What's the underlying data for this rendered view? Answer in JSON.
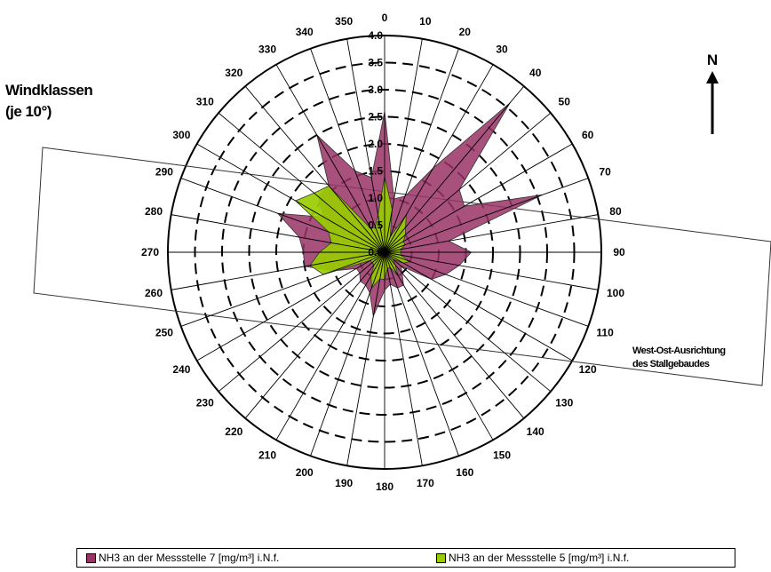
{
  "chart_data": {
    "type": "radar",
    "title_lines": [
      "Windklassen",
      "(je 10°)"
    ],
    "north_label": "N",
    "annotation_lines": [
      "West-Ost-Ausrichtung",
      "des Stallgebaudes"
    ],
    "angle_labels": [
      "0",
      "10",
      "20",
      "30",
      "40",
      "50",
      "60",
      "70",
      "80",
      "90",
      "100",
      "110",
      "120",
      "130",
      "140",
      "150",
      "160",
      "170",
      "180",
      "190",
      "200",
      "210",
      "220",
      "230",
      "240",
      "250",
      "260",
      "270",
      "280",
      "290",
      "300",
      "310",
      "320",
      "330",
      "340",
      "350"
    ],
    "radial_labels": [
      "0.0",
      "0.5",
      "1.0",
      "1.5",
      "2.0",
      "2.5",
      "3.0",
      "3.5",
      "4.0"
    ],
    "rlim": [
      0,
      4.0
    ],
    "series": [
      {
        "name": "NH3 an der Messstelle 7 [mg/m³] i.N.f.",
        "color": "#993366",
        "values": [
          2.6,
          1.0,
          1.1,
          1.8,
          3.6,
          1.8,
          1.7,
          3.1,
          1.2,
          1.6,
          1.4,
          1.2,
          1.0,
          0.4,
          0.5,
          0.7,
          0.7,
          0.6,
          0.7,
          1.2,
          0.8,
          0.7,
          0.7,
          0.6,
          0.6,
          1.0,
          1.5,
          1.5,
          1.6,
          2.1,
          1.3,
          1.6,
          1.6,
          2.5,
          1.6,
          1.4
        ]
      },
      {
        "name": "NH3 an der Messstelle 5 [mg/m³] i.N.f.",
        "color": "#99CC00",
        "values": [
          1.4,
          0.8,
          0.3,
          0.8,
          0.6,
          0.5,
          0.4,
          0.4,
          0.3,
          0.3,
          0.3,
          0.5,
          0.4,
          0.2,
          0.3,
          0.5,
          0.3,
          0.3,
          0.5,
          0.5,
          0.7,
          0.5,
          0.3,
          0.3,
          0.3,
          1.2,
          1.4,
          1.2,
          1.0,
          1.1,
          1.9,
          1.7,
          1.6,
          0.5,
          0.5,
          0.7
        ]
      }
    ]
  },
  "legend": {
    "items": [
      {
        "label": "NH3 an der Messstelle 7 [mg/m³] i.N.f.",
        "color": "#993366"
      },
      {
        "label": "NH3 an der Messstelle 5 [mg/m³] i.N.f.",
        "color": "#99CC00"
      }
    ]
  }
}
